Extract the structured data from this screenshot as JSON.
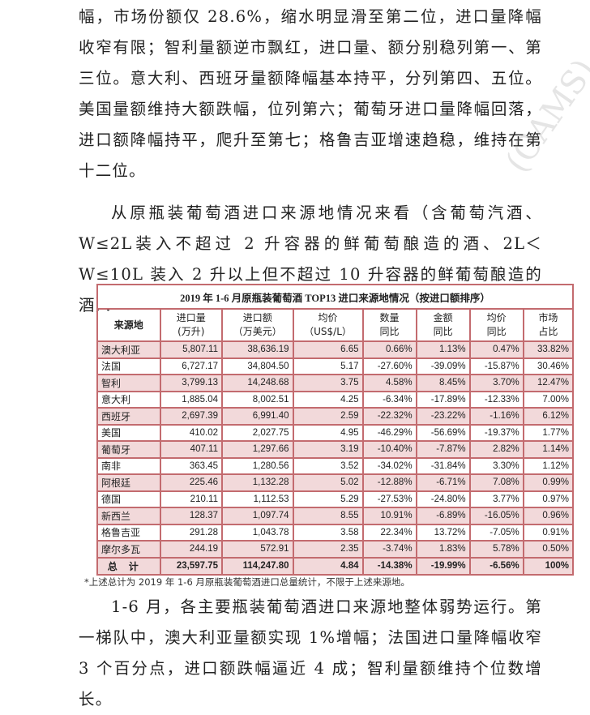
{
  "paragraphs": [
    "幅，市场份额仅 28.6%，缩水明显滑至第二位，进口量降幅收窄有限；智利量额逆市飘红，进口量、额分别稳列第一、第三位。意大利、西班牙量额降幅基本持平，分列第四、五位。美国量额维持大额跌幅，位列第六；葡萄牙进口量降幅回落，进口额降幅持平，爬升至第七；格鲁吉亚增速趋稳，维持在第十二位。",
    "从原瓶装葡萄酒进口来源地情况来看（含葡萄汽酒、W≤2L装入不超过 2 升容器的鲜葡萄酿造的酒、2L＜W≤10L 装入 2 升以上但不超过 10 升容器的鲜葡萄酿造的酒）：",
    "1-6 月，各主要瓶装葡萄酒进口来源地整体弱势运行。第一梯队中，澳大利亚量额实现 1%增幅；法国进口量降幅收窄 3 个百分点，进口额跌幅逼近 4 成；智利量额维持个位数增长。"
  ],
  "table": {
    "title": "2019 年 1-6 月原瓶装葡萄酒 TOP13 进口来源地情况（按进口额排序）",
    "headers": [
      [
        "来源地",
        ""
      ],
      [
        "进口量",
        "(万升)"
      ],
      [
        "进口额",
        "（万美元）"
      ],
      [
        "均价",
        "（US$/L）"
      ],
      [
        "数量",
        "同比"
      ],
      [
        "金额",
        "同比"
      ],
      [
        "均价",
        "同比"
      ],
      [
        "市场",
        "占比"
      ]
    ],
    "rows": [
      [
        "澳大利亚",
        "5,807.11",
        "38,636.19",
        "6.65",
        "0.66%",
        "1.13%",
        "0.47%",
        "33.82%"
      ],
      [
        "法国",
        "6,727.17",
        "34,804.50",
        "5.17",
        "-27.60%",
        "-39.09%",
        "-15.87%",
        "30.46%"
      ],
      [
        "智利",
        "3,799.13",
        "14,248.68",
        "3.75",
        "4.58%",
        "8.45%",
        "3.70%",
        "12.47%"
      ],
      [
        "意大利",
        "1,885.04",
        "8,002.51",
        "4.25",
        "-6.34%",
        "-17.89%",
        "-12.33%",
        "7.00%"
      ],
      [
        "西班牙",
        "2,697.39",
        "6,991.40",
        "2.59",
        "-22.32%",
        "-23.22%",
        "-1.16%",
        "6.12%"
      ],
      [
        "美国",
        "410.02",
        "2,027.75",
        "4.95",
        "-46.29%",
        "-56.69%",
        "-19.37%",
        "1.77%"
      ],
      [
        "葡萄牙",
        "407.11",
        "1,297.66",
        "3.19",
        "-10.40%",
        "-7.87%",
        "2.82%",
        "1.14%"
      ],
      [
        "南非",
        "363.45",
        "1,280.56",
        "3.52",
        "-34.02%",
        "-31.84%",
        "3.30%",
        "1.12%"
      ],
      [
        "阿根廷",
        "225.46",
        "1,132.28",
        "5.02",
        "-12.88%",
        "-6.71%",
        "7.08%",
        "0.99%"
      ],
      [
        "德国",
        "210.11",
        "1,112.53",
        "5.29",
        "-27.53%",
        "-24.80%",
        "3.77%",
        "0.97%"
      ],
      [
        "新西兰",
        "128.37",
        "1,097.74",
        "8.55",
        "10.91%",
        "-6.89%",
        "-16.05%",
        "0.96%"
      ],
      [
        "格鲁吉亚",
        "291.28",
        "1,043.78",
        "3.58",
        "22.34%",
        "13.72%",
        "-7.05%",
        "0.91%"
      ],
      [
        "摩尔多瓦",
        "244.19",
        "572.91",
        "2.35",
        "-3.74%",
        "1.83%",
        "5.78%",
        "0.50%"
      ]
    ],
    "total": [
      "总计",
      "23,597.75",
      "114,247.80",
      "4.84",
      "-14.38%",
      "-19.99%",
      "-6.56%",
      "100%"
    ],
    "note": "*上述总计为 2019 年 1-6 月原瓶装葡萄酒进口总量统计，不限于上述来源地。"
  },
  "watermark": "CAMS",
  "colors": {
    "border": "#c36b6f",
    "row_fill": "#f2d9da"
  }
}
